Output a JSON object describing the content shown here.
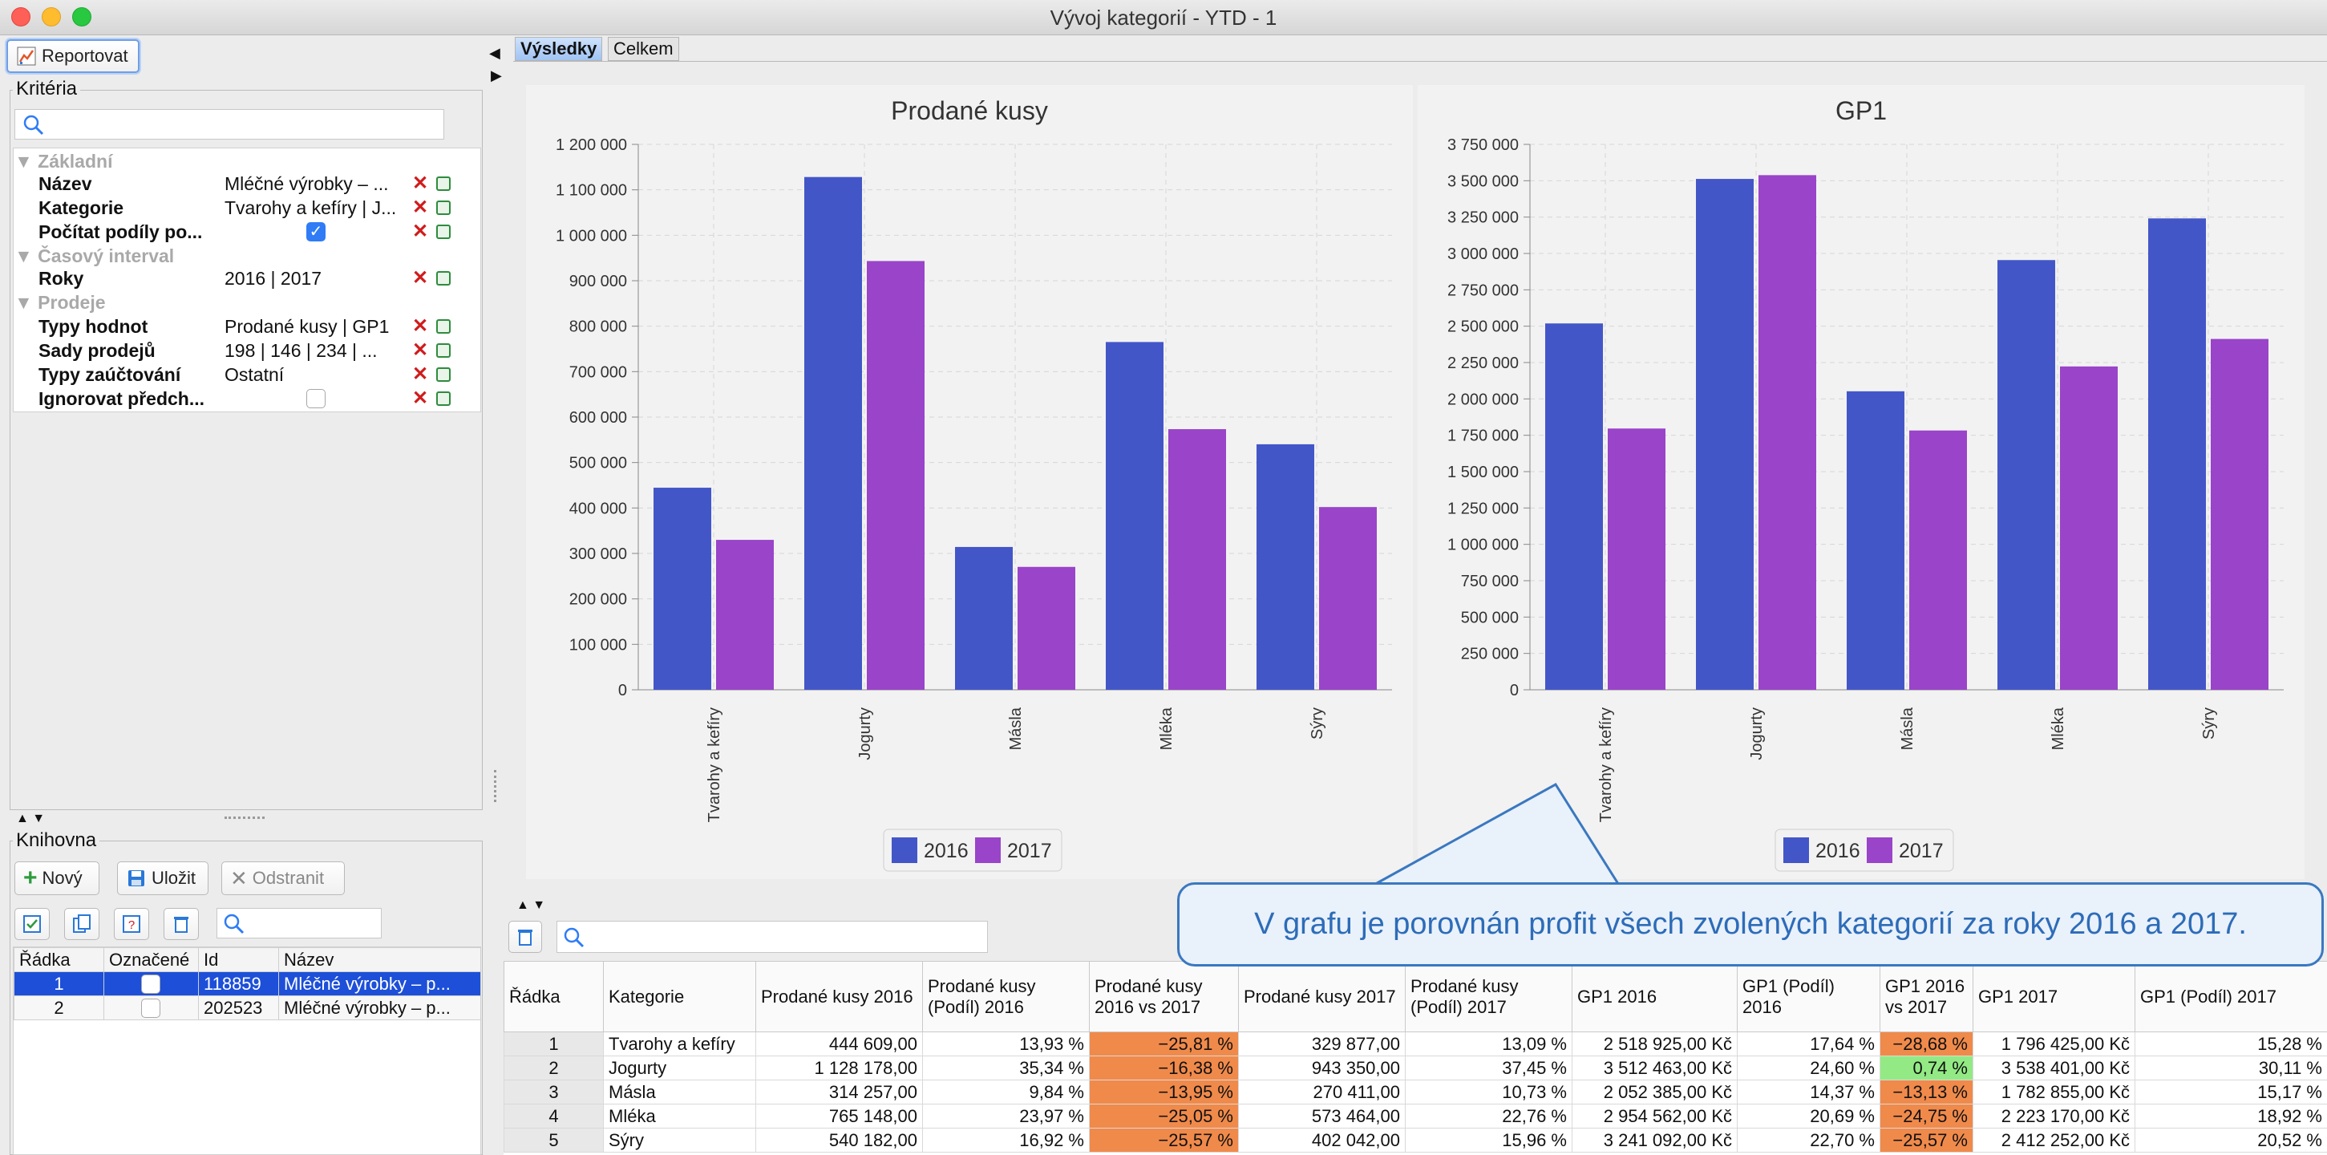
{
  "window": {
    "title": "Vývoj kategorií - YTD - 1"
  },
  "toolbar": {
    "report_label": "Reportovat"
  },
  "criteria": {
    "title": "Kritéria",
    "groups": [
      {
        "label": "Základní"
      },
      {
        "label": "Časový interval"
      },
      {
        "label": "Prodeje"
      }
    ],
    "rows": [
      {
        "name": "Název",
        "value": "Mléčné výrobky – ..."
      },
      {
        "name": "Kategorie",
        "value": "Tvarohy a kefíry | J..."
      },
      {
        "name": "Počítat podíly po...",
        "value": ""
      },
      {
        "name": "Roky",
        "value": "2016 | 2017"
      },
      {
        "name": "Typy hodnot",
        "value": "Prodané kusy | GP1"
      },
      {
        "name": "Sady prodejů",
        "value": "198 | 146 | 234 | ..."
      },
      {
        "name": "Typy zaúčtování",
        "value": "Ostatní"
      },
      {
        "name": "Ignorovat předch...",
        "value": ""
      }
    ]
  },
  "library": {
    "title": "Knihovna",
    "new_label": "Nový",
    "save_label": "Uložit",
    "delete_label": "Odstranit",
    "columns": [
      "Řádka",
      "Označené",
      "Id",
      "Název"
    ],
    "rows": [
      {
        "row": "1",
        "id": "118859",
        "name": "Mléčné výrobky – p..."
      },
      {
        "row": "2",
        "id": "202523",
        "name": "Mléčné výrobky – p..."
      }
    ]
  },
  "tabs": [
    {
      "label": "Výsledky"
    },
    {
      "label": "Celkem"
    }
  ],
  "chart_data": [
    {
      "type": "bar",
      "title": "Prodané kusy",
      "categories": [
        "Tvarohy a kefíry",
        "Jogurty",
        "Másla",
        "Mléka",
        "Sýry"
      ],
      "series": [
        {
          "name": "2016",
          "color": "#4356c8",
          "values": [
            444609,
            1128178,
            314257,
            765148,
            540182
          ]
        },
        {
          "name": "2017",
          "color": "#9944c9",
          "values": [
            329877,
            943350,
            270411,
            573464,
            402042
          ]
        }
      ],
      "ylim": [
        0,
        1200000
      ],
      "yticks": [
        "0",
        "100 000",
        "200 000",
        "300 000",
        "400 000",
        "500 000",
        "600 000",
        "700 000",
        "800 000",
        "900 000",
        "1 000 000",
        "1 100 000",
        "1 200 000"
      ],
      "legend": "bottom"
    },
    {
      "type": "bar",
      "title": "GP1",
      "categories": [
        "Tvarohy a kefíry",
        "Jogurty",
        "Másla",
        "Mléka",
        "Sýry"
      ],
      "series": [
        {
          "name": "2016",
          "color": "#4356c8",
          "values": [
            2518925,
            3512463,
            2052385,
            2954562,
            3241092
          ]
        },
        {
          "name": "2017",
          "color": "#9944c9",
          "values": [
            1796425,
            3538401,
            1782855,
            2223170,
            2412252
          ]
        }
      ],
      "ylim": [
        0,
        3750000
      ],
      "yticks": [
        "0",
        "250 000",
        "500 000",
        "750 000",
        "1 000 000",
        "1 250 000",
        "1 500 000",
        "1 750 000",
        "2 000 000",
        "2 250 000",
        "2 500 000",
        "2 750 000",
        "3 000 000",
        "3 250 000",
        "3 500 000",
        "3 750 000"
      ],
      "legend": "bottom"
    }
  ],
  "callout": {
    "text": "V grafu je porovnán profit všech zvolených kategorií za roky 2016 a 2017."
  },
  "results_table": {
    "columns": [
      "Řádka",
      "Kategorie",
      "Prodané kusy 2016",
      "Prodané kusy (Podíl) 2016",
      "Prodané kusy 2016 vs 2017",
      "Prodané kusy 2017",
      "Prodané kusy (Podíl) 2017",
      "GP1 2016",
      "GP1 (Podíl) 2016",
      "GP1 2016 vs 2017",
      "GP1 2017",
      "GP1 (Podíl) 2017"
    ],
    "rows": [
      [
        "1",
        "Tvarohy a kefíry",
        "444 609,00",
        "13,93 %",
        "−25,81 %",
        "329 877,00",
        "13,09 %",
        "2 518 925,00 Kč",
        "17,64 %",
        "−28,68 %",
        "1 796 425,00 Kč",
        "15,28 %"
      ],
      [
        "2",
        "Jogurty",
        "1 128 178,00",
        "35,34 %",
        "−16,38 %",
        "943 350,00",
        "37,45 %",
        "3 512 463,00 Kč",
        "24,60 %",
        "0,74 %",
        "3 538 401,00 Kč",
        "30,11 %"
      ],
      [
        "3",
        "Másla",
        "314 257,00",
        "9,84 %",
        "−13,95 %",
        "270 411,00",
        "10,73 %",
        "2 052 385,00 Kč",
        "14,37 %",
        "−13,13 %",
        "1 782 855,00 Kč",
        "15,17 %"
      ],
      [
        "4",
        "Mléka",
        "765 148,00",
        "23,97 %",
        "−25,05 %",
        "573 464,00",
        "22,76 %",
        "2 954 562,00 Kč",
        "20,69 %",
        "−24,75 %",
        "2 223 170,00 Kč",
        "18,92 %"
      ],
      [
        "5",
        "Sýry",
        "540 182,00",
        "16,92 %",
        "−25,57 %",
        "402 042,00",
        "15,96 %",
        "3 241 092,00 Kč",
        "22,70 %",
        "−25,57 %",
        "2 412 252,00 Kč",
        "20,52 %"
      ]
    ],
    "highlight_colors": {
      "negative": "#f08a4b",
      "positive": "#93ea85"
    }
  }
}
